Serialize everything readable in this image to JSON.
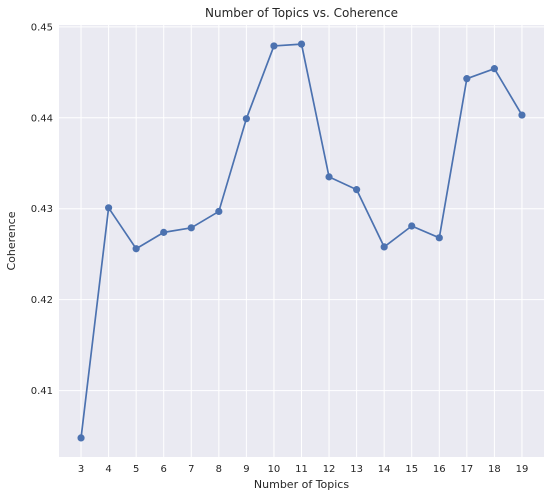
{
  "chart_data": {
    "type": "line",
    "title": "Number of Topics vs. Coherence",
    "xlabel": "Number of Topics",
    "ylabel": "Coherence",
    "x": [
      3,
      4,
      5,
      6,
      7,
      8,
      9,
      10,
      11,
      12,
      13,
      14,
      15,
      16,
      17,
      18,
      19
    ],
    "series": [
      {
        "values": [
          0.4048,
          0.4301,
          0.4256,
          0.4274,
          0.4279,
          0.4297,
          0.4399,
          0.4479,
          0.4481,
          0.4335,
          0.4321,
          0.4258,
          0.4281,
          0.4268,
          0.4443,
          0.4454,
          0.4403
        ],
        "color": "#4c72b0",
        "marker": "circle"
      }
    ],
    "xticks": [
      "3",
      "4",
      "5",
      "6",
      "7",
      "8",
      "9",
      "10",
      "11",
      "12",
      "13",
      "14",
      "15",
      "16",
      "17",
      "18",
      "19"
    ],
    "yticks": [
      "0.41",
      "0.42",
      "0.43",
      "0.44",
      "0.45"
    ],
    "xlim": [
      2.2,
      19.8
    ],
    "ylim": [
      0.4027,
      0.4502
    ],
    "grid": true,
    "background": "#eaeaf2",
    "grid_color": "#ffffff"
  }
}
